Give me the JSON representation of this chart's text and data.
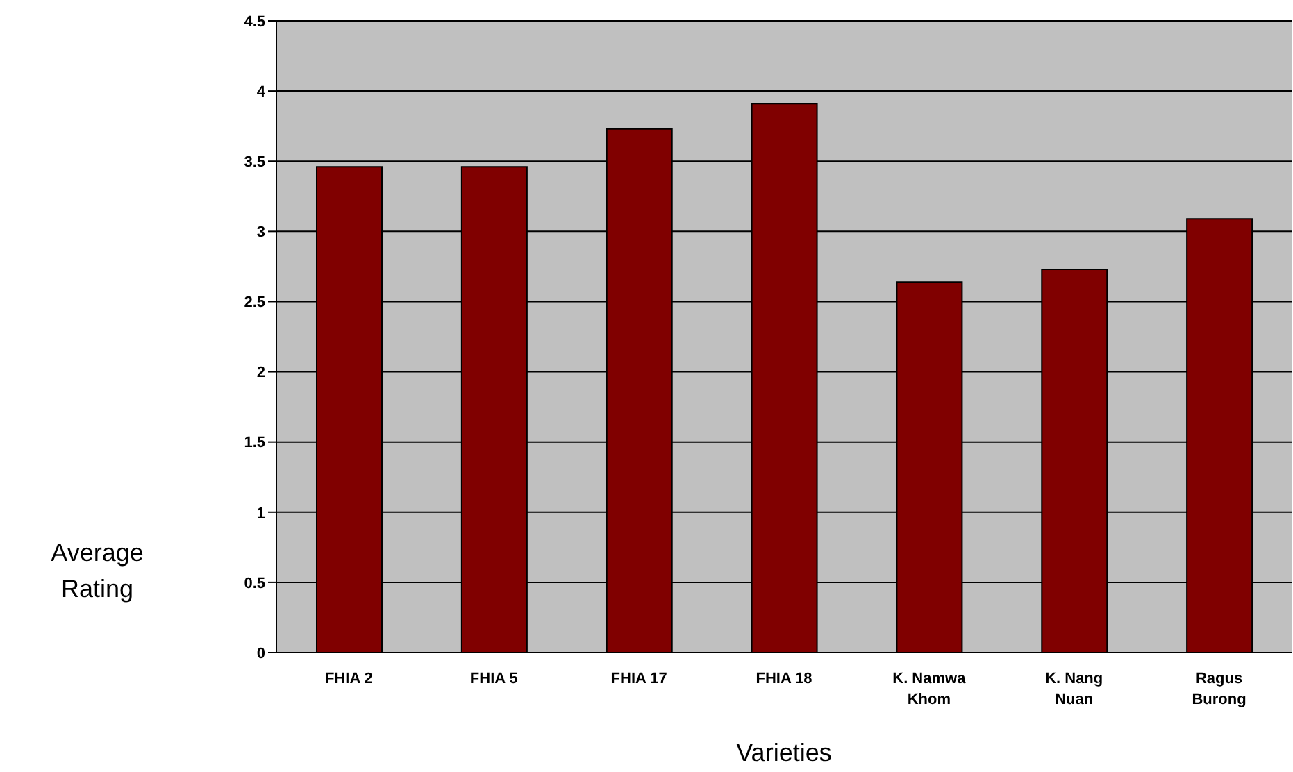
{
  "chart_data": {
    "type": "bar",
    "xlabel": "Varieties",
    "ylabel": "Average Rating",
    "categories": [
      "FHIA 2",
      "FHIA 5",
      "FHIA 17",
      "FHIA 18",
      "K. Namwa Khom",
      "K. Nang Nuan",
      "Ragus Burong"
    ],
    "values": [
      3.46,
      3.46,
      3.73,
      3.91,
      2.64,
      2.73,
      3.09
    ],
    "color": "#800000",
    "ylim": [
      0,
      4.5
    ],
    "yticks": [
      0,
      0.5,
      1,
      1.5,
      2,
      2.5,
      3,
      3.5,
      4,
      4.5
    ],
    "grid": "y"
  }
}
